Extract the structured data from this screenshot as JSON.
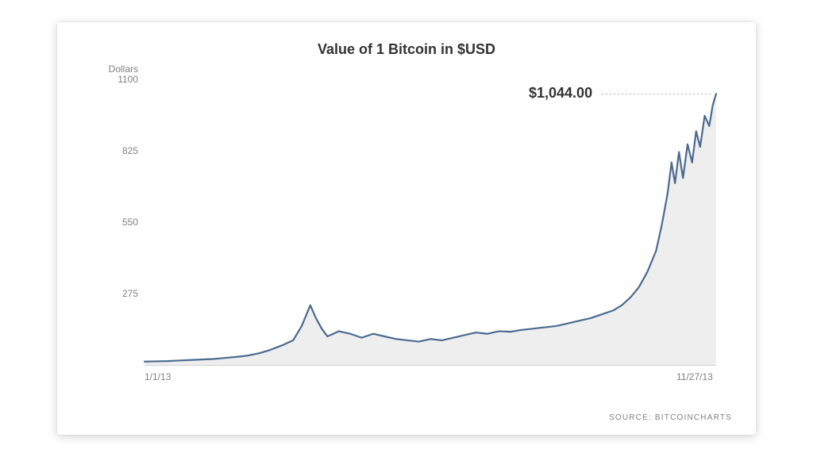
{
  "chart": {
    "type": "area",
    "title": "Value of 1 Bitcoin in $USD",
    "title_fontsize": 18,
    "title_color": "#333333",
    "y_unit_label": "Dollars",
    "ylim": [
      0,
      1100
    ],
    "yticks": [
      275,
      550,
      825,
      1100
    ],
    "xticks": [
      {
        "t": 0.0,
        "label": "1/1/13"
      },
      {
        "t": 1.0,
        "label": "11/27/13"
      }
    ],
    "axis_fontsize": 12,
    "axis_color": "#808080",
    "line_color": "#4b6a90",
    "line_width": 2.2,
    "fill_color": "#eeeeee",
    "baseline_color": "#aaaaaa",
    "background_color": "#ffffff",
    "callout": {
      "label": "$1,044.00",
      "t": 0.8,
      "y": 1044,
      "fontsize": 18,
      "dash_color": "#b0b0b0",
      "dash_pattern": "2,3"
    },
    "series": [
      {
        "t": 0.0,
        "y": 13
      },
      {
        "t": 0.02,
        "y": 14
      },
      {
        "t": 0.04,
        "y": 15
      },
      {
        "t": 0.06,
        "y": 17
      },
      {
        "t": 0.08,
        "y": 19
      },
      {
        "t": 0.1,
        "y": 21
      },
      {
        "t": 0.12,
        "y": 23
      },
      {
        "t": 0.14,
        "y": 27
      },
      {
        "t": 0.16,
        "y": 31
      },
      {
        "t": 0.18,
        "y": 36
      },
      {
        "t": 0.2,
        "y": 45
      },
      {
        "t": 0.22,
        "y": 58
      },
      {
        "t": 0.24,
        "y": 75
      },
      {
        "t": 0.26,
        "y": 95
      },
      {
        "t": 0.275,
        "y": 150
      },
      {
        "t": 0.29,
        "y": 230
      },
      {
        "t": 0.3,
        "y": 180
      },
      {
        "t": 0.31,
        "y": 140
      },
      {
        "t": 0.32,
        "y": 110
      },
      {
        "t": 0.34,
        "y": 130
      },
      {
        "t": 0.36,
        "y": 120
      },
      {
        "t": 0.38,
        "y": 105
      },
      {
        "t": 0.4,
        "y": 120
      },
      {
        "t": 0.42,
        "y": 110
      },
      {
        "t": 0.44,
        "y": 100
      },
      {
        "t": 0.46,
        "y": 95
      },
      {
        "t": 0.48,
        "y": 90
      },
      {
        "t": 0.5,
        "y": 100
      },
      {
        "t": 0.52,
        "y": 95
      },
      {
        "t": 0.54,
        "y": 105
      },
      {
        "t": 0.56,
        "y": 115
      },
      {
        "t": 0.58,
        "y": 125
      },
      {
        "t": 0.6,
        "y": 120
      },
      {
        "t": 0.62,
        "y": 130
      },
      {
        "t": 0.64,
        "y": 128
      },
      {
        "t": 0.66,
        "y": 135
      },
      {
        "t": 0.68,
        "y": 140
      },
      {
        "t": 0.7,
        "y": 145
      },
      {
        "t": 0.72,
        "y": 150
      },
      {
        "t": 0.74,
        "y": 160
      },
      {
        "t": 0.76,
        "y": 170
      },
      {
        "t": 0.78,
        "y": 180
      },
      {
        "t": 0.8,
        "y": 195
      },
      {
        "t": 0.82,
        "y": 210
      },
      {
        "t": 0.835,
        "y": 230
      },
      {
        "t": 0.85,
        "y": 260
      },
      {
        "t": 0.865,
        "y": 300
      },
      {
        "t": 0.88,
        "y": 360
      },
      {
        "t": 0.895,
        "y": 440
      },
      {
        "t": 0.905,
        "y": 540
      },
      {
        "t": 0.915,
        "y": 660
      },
      {
        "t": 0.922,
        "y": 780
      },
      {
        "t": 0.928,
        "y": 700
      },
      {
        "t": 0.935,
        "y": 820
      },
      {
        "t": 0.942,
        "y": 720
      },
      {
        "t": 0.95,
        "y": 850
      },
      {
        "t": 0.958,
        "y": 780
      },
      {
        "t": 0.965,
        "y": 900
      },
      {
        "t": 0.972,
        "y": 840
      },
      {
        "t": 0.98,
        "y": 960
      },
      {
        "t": 0.988,
        "y": 920
      },
      {
        "t": 0.994,
        "y": 1000
      },
      {
        "t": 1.0,
        "y": 1044
      }
    ],
    "source": "SOURCE: BITCOINCHARTS",
    "source_fontsize": 10,
    "source_color": "#808080"
  }
}
